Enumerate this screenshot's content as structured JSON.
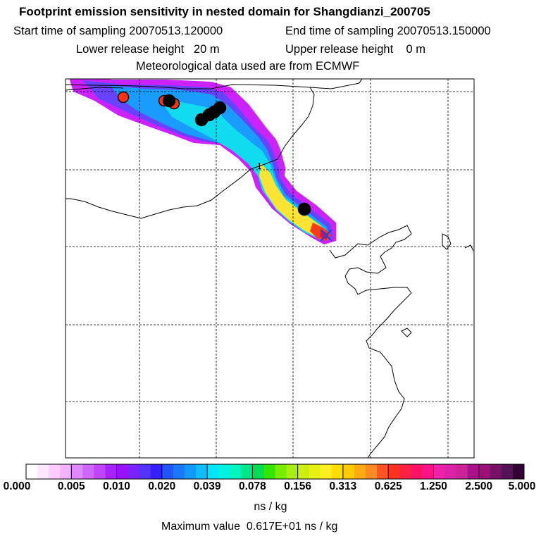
{
  "header": {
    "title": "Footprint emission sensitivity in nested domain for Shangdianzi_200705",
    "start_time": "Start time of sampling 20070513.120000",
    "end_time": "End time of sampling 20070513.150000",
    "lower_height": "Lower release height   20 m",
    "upper_height": "Upper release height    0 m",
    "met_data": "Meteorological data used are from ECMWF"
  },
  "map": {
    "contour_label": "1",
    "plume_colors": [
      "#cc22ff",
      "#6644ff",
      "#1a9cff",
      "#11dcef",
      "#ffe433",
      "#ff3b1a",
      "#cc1166"
    ],
    "particle_colors": [
      "#000000",
      "#ff3311"
    ],
    "grid_color": "#000000",
    "receptor_marker": "x-icon"
  },
  "colorbar": {
    "ticks": [
      "0.000",
      "0.005",
      "0.010",
      "0.020",
      "0.039",
      "0.078",
      "0.156",
      "0.313",
      "0.625",
      "1.250",
      "2.500",
      "5.000"
    ],
    "colors": [
      [
        "#ffffff",
        "#ffe6ff",
        "#ffccff",
        "#f2b3ff"
      ],
      [
        "#e08aff",
        "#d066ff",
        "#c044ff",
        "#a822ff"
      ],
      [
        "#9a11ff",
        "#7a22ff",
        "#5533ff",
        "#3322ff"
      ],
      [
        "#2255ff",
        "#1a77ff",
        "#1199ff",
        "#11bbff"
      ],
      [
        "#00e5ff",
        "#00f0e0",
        "#00f5c0",
        "#00e68a"
      ],
      [
        "#00dd55",
        "#33e600",
        "#77ee00",
        "#aaee11"
      ],
      [
        "#ccee11",
        "#e6f011",
        "#ffee22",
        "#ffdd00"
      ],
      [
        "#ffcc00",
        "#ffaa11",
        "#ff8822",
        "#ff5522"
      ],
      [
        "#ff3322",
        "#ff2244",
        "#ff1166",
        "#ff1188"
      ],
      [
        "#ee22aa",
        "#dd22aa",
        "#cc2299",
        "#aa1188"
      ],
      [
        "#991177",
        "#771166",
        "#551155",
        "#330033"
      ]
    ],
    "unit": "ns / kg",
    "max_value": "Maximum value  0.617E+01 ns / kg"
  }
}
